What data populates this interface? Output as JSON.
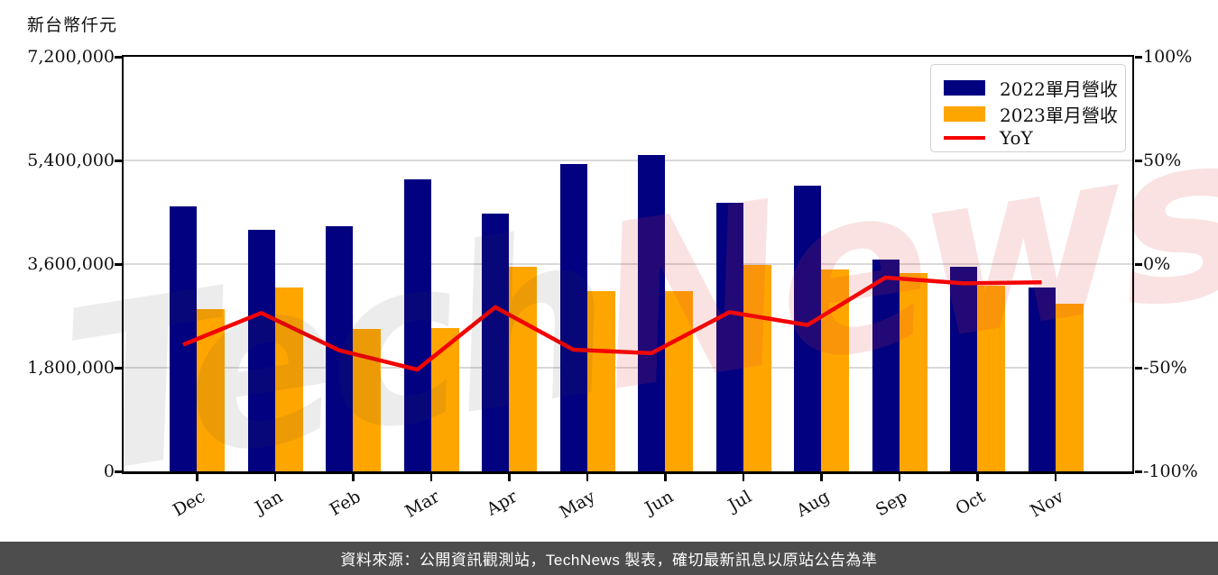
{
  "watermark": {
    "part1": "Tech",
    "part2": "News",
    "tech_color": "#ebebeb",
    "news_color": "#f8dfdf"
  },
  "footer": {
    "text": "資料來源：公開資訊觀測站，TechNews 製表，確切最新訊息以原站公告為準",
    "background": "#4d4d4d"
  },
  "chart_data": {
    "type": "bar",
    "unit_label": "新台幣仟元",
    "categories": [
      "Dec",
      "Jan",
      "Feb",
      "Mar",
      "Apr",
      "May",
      "Jun",
      "Jul",
      "Aug",
      "Sep",
      "Oct",
      "Nov"
    ],
    "series": [
      {
        "name": "2022單月營收",
        "type": "bar",
        "color": "#020180",
        "axis": "left",
        "values": [
          4600000,
          4190000,
          4250000,
          5070000,
          4480000,
          5330000,
          5490000,
          4660000,
          4960000,
          3680000,
          3550000,
          3190000
        ]
      },
      {
        "name": "2023單月營收",
        "type": "bar",
        "color": "#ffa500",
        "axis": "left",
        "values": [
          2810000,
          3200000,
          2480000,
          2490000,
          3550000,
          3130000,
          3130000,
          3580000,
          3500000,
          3440000,
          3220000,
          2910000
        ]
      },
      {
        "name": "YoY",
        "type": "line",
        "color": "#f40000",
        "axis": "right",
        "values": [
          -38.9,
          -23.6,
          -41.6,
          -50.9,
          -20.8,
          -41.3,
          -43.0,
          -23.2,
          -29.4,
          -6.5,
          -9.3,
          -8.8
        ]
      }
    ],
    "left_axis": {
      "min": 0,
      "max": 7200000,
      "tick_values": [
        7200000,
        5400000,
        3600000,
        1800000,
        0
      ],
      "tick_labels": [
        "7,200,000",
        "5,400,000",
        "3,600,000",
        "1,800,000",
        "0"
      ]
    },
    "right_axis": {
      "min": -100,
      "max": 100,
      "tick_values": [
        100,
        50,
        0,
        -50,
        -100
      ],
      "tick_labels": [
        "100%",
        "50%",
        "0%",
        "-50%",
        "-100%"
      ]
    },
    "grid": "horizontal",
    "legend_position": "upper-right"
  }
}
